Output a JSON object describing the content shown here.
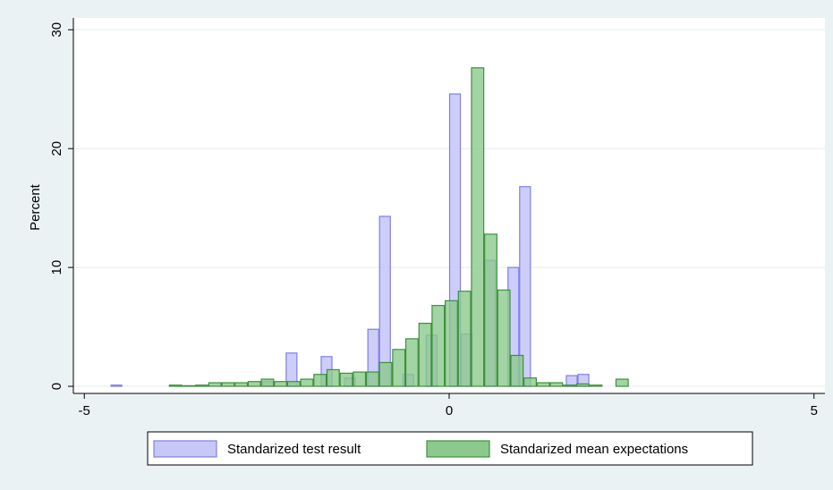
{
  "chart_data": {
    "type": "histogram",
    "ylabel": "Percent",
    "xlim": [
      -5.15,
      5.15
    ],
    "xticks": [
      -5,
      0,
      5
    ],
    "ylim": [
      -0.6,
      31
    ],
    "yticks": [
      0,
      10,
      20,
      30
    ],
    "grid": true,
    "legend": "bottom",
    "series": [
      {
        "name": "Standarized test result",
        "color": "#c8c8f8",
        "bins": [
          -4.64,
          -4.48,
          -4.32,
          -4.16,
          -4.0,
          -3.84,
          -3.68,
          -3.52,
          -3.36,
          -3.2,
          -3.04,
          -2.88,
          -2.72,
          -2.56,
          -2.4,
          -2.24,
          -2.08,
          -1.92,
          -1.76,
          -1.6,
          -1.44,
          -1.28,
          -1.12,
          -0.96,
          -0.8,
          -0.64,
          -0.48,
          -0.32,
          -0.16,
          0,
          0.16,
          0.32,
          0.48,
          0.64,
          0.8,
          0.96,
          1.12,
          1.28,
          1.44,
          1.6,
          1.76,
          1.92
        ],
        "values": [
          0.1,
          0,
          0,
          0,
          0,
          0,
          0,
          0,
          0,
          0,
          0,
          0,
          0,
          0.4,
          0,
          2.8,
          0,
          0,
          2.5,
          0,
          0.7,
          0,
          4.8,
          14.3,
          0,
          1.0,
          0,
          4.3,
          0,
          24.6,
          4.4,
          0,
          10.6,
          0,
          10.0,
          16.8,
          0,
          0,
          0,
          0.9,
          1.0
        ]
      },
      {
        "name": "Standarized mean expectations",
        "color": "#8cc98c",
        "bins": [
          -3.84,
          -3.66,
          -3.48,
          -3.3,
          -3.12,
          -2.94,
          -2.76,
          -2.58,
          -2.4,
          -2.22,
          -2.04,
          -1.86,
          -1.68,
          -1.5,
          -1.32,
          -1.14,
          -0.96,
          -0.78,
          -0.6,
          -0.42,
          -0.24,
          -0.06,
          0.12,
          0.3,
          0.48,
          0.66,
          0.84,
          1.02,
          1.2,
          1.38,
          1.56,
          1.74,
          1.92,
          2.1,
          2.28,
          2.46
        ],
        "values": [
          0.1,
          0.05,
          0.1,
          0.3,
          0.3,
          0.3,
          0.4,
          0.6,
          0.4,
          0.4,
          0.6,
          1.0,
          1.4,
          1.1,
          1.2,
          1.2,
          2.0,
          3.1,
          4.0,
          5.3,
          6.8,
          7.2,
          8.0,
          26.8,
          12.8,
          8.1,
          2.6,
          0.7,
          0.3,
          0.3,
          0.1,
          0.2,
          0.1,
          0,
          0.6
        ]
      }
    ]
  }
}
